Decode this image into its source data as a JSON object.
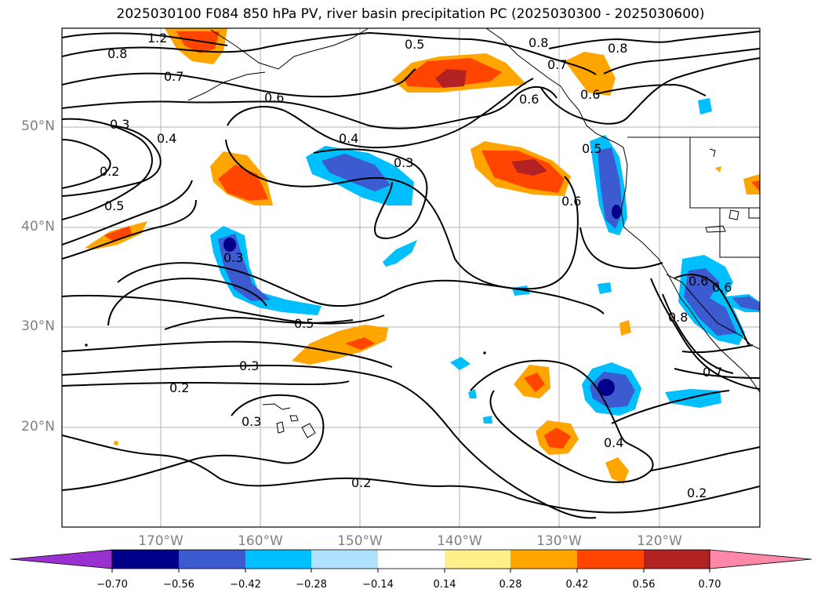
{
  "title": "2025030100 F084 850 hPa PV, river basin precipitation PC (2025030300 - 2025030600)",
  "latitude_labels": [
    "50°N",
    "40°N",
    "30°N",
    "20°N"
  ],
  "longitude_labels": [
    "170°W",
    "160°W",
    "150°W",
    "140°W",
    "130°W",
    "120°W"
  ],
  "colorbar": {
    "ticks": [
      "−0.70",
      "−0.56",
      "−0.42",
      "−0.28",
      "−0.14",
      "0.14",
      "0.28",
      "0.42",
      "0.56",
      "0.70"
    ],
    "colors": [
      "#9b30d0",
      "#00008b",
      "#3c5bd0",
      "#00bfff",
      "#b0e2ff",
      "#ffffff",
      "#fff08a",
      "#ffa500",
      "#ff4500",
      "#b22222",
      "#ff88aa"
    ]
  },
  "contour_labels": [
    "1.2",
    "0.8",
    "0.7",
    "0.5",
    "0.6",
    "0.3",
    "0.4",
    "0.2",
    "0.5",
    "0.4",
    "0.3",
    "0.3",
    "0.5",
    "0.3",
    "0.2",
    "0.3",
    "0.2",
    "0.4",
    "0.2",
    "0.8",
    "0.7",
    "0.6",
    "0.6",
    "0.8",
    "0.6",
    "0.5",
    "0.6",
    "0.6",
    "0.8",
    "0.7"
  ],
  "colors": {
    "ocean": "#ffffff",
    "contour": "#000000",
    "grid": "#b0b0b0",
    "label": "#808080"
  }
}
